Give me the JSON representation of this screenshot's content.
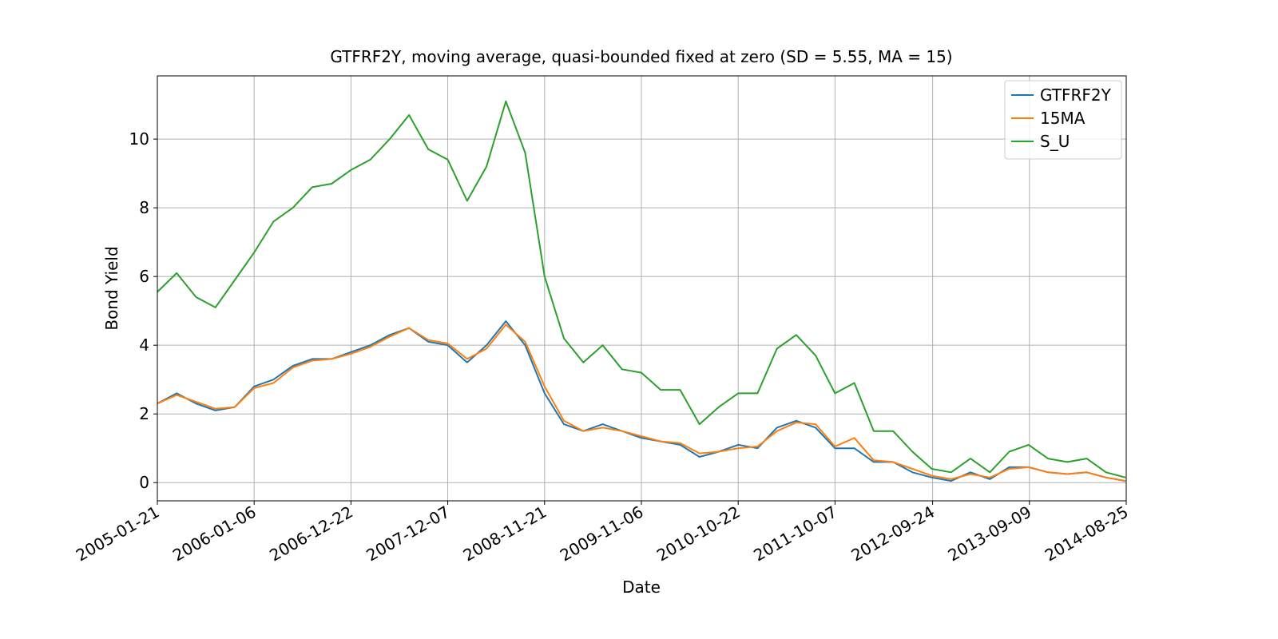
{
  "chart_data": {
    "type": "line",
    "title": "GTFRF2Y, moving average, quasi-bounded fixed at zero (SD = 5.55, MA = 15)",
    "xlabel": "Date",
    "ylabel": "Bond Yield",
    "x": [
      "2005-01-21",
      "2005-04-01",
      "2005-06-10",
      "2005-08-19",
      "2005-10-28",
      "2006-01-06",
      "2006-03-17",
      "2006-05-26",
      "2006-08-04",
      "2006-10-13",
      "2006-12-22",
      "2007-03-02",
      "2007-05-11",
      "2007-07-20",
      "2007-09-28",
      "2007-12-07",
      "2008-02-15",
      "2008-04-25",
      "2008-07-04",
      "2008-09-12",
      "2008-11-21",
      "2009-01-30",
      "2009-04-10",
      "2009-06-19",
      "2009-08-28",
      "2009-11-06",
      "2010-01-15",
      "2010-03-26",
      "2010-06-04",
      "2010-08-13",
      "2010-10-22",
      "2010-12-31",
      "2011-03-11",
      "2011-05-20",
      "2011-07-29",
      "2011-10-07",
      "2011-12-16",
      "2012-02-24",
      "2012-05-04",
      "2012-07-13",
      "2012-09-21",
      "2012-11-30",
      "2013-02-08",
      "2013-04-19",
      "2013-06-28",
      "2013-09-06",
      "2013-11-15",
      "2014-01-24",
      "2014-04-04",
      "2014-06-13",
      "2014-08-22"
    ],
    "series": [
      {
        "name": "GTFRF2Y",
        "color": "#1f77b4",
        "values": [
          2.3,
          2.6,
          2.3,
          2.1,
          2.2,
          2.8,
          3.0,
          3.4,
          3.6,
          3.6,
          3.8,
          4.0,
          4.3,
          4.5,
          4.1,
          4.0,
          3.5,
          4.0,
          4.7,
          4.0,
          2.6,
          1.7,
          1.5,
          1.7,
          1.5,
          1.3,
          1.2,
          1.1,
          0.75,
          0.9,
          1.1,
          1.0,
          1.6,
          1.8,
          1.6,
          1.0,
          1.0,
          0.6,
          0.6,
          0.3,
          0.15,
          0.05,
          0.3,
          0.1,
          0.45,
          0.45,
          0.3,
          0.25,
          0.3,
          0.15,
          0.05
        ]
      },
      {
        "name": "15MA",
        "color": "#ff7f0e",
        "values": [
          2.3,
          2.55,
          2.35,
          2.15,
          2.2,
          2.75,
          2.9,
          3.35,
          3.55,
          3.6,
          3.75,
          3.95,
          4.25,
          4.5,
          4.15,
          4.05,
          3.6,
          3.9,
          4.6,
          4.1,
          2.8,
          1.8,
          1.5,
          1.6,
          1.5,
          1.35,
          1.2,
          1.15,
          0.85,
          0.9,
          1.0,
          1.05,
          1.5,
          1.75,
          1.7,
          1.05,
          1.3,
          0.65,
          0.6,
          0.4,
          0.2,
          0.1,
          0.25,
          0.15,
          0.4,
          0.45,
          0.3,
          0.25,
          0.3,
          0.15,
          0.05
        ]
      },
      {
        "name": "S_U",
        "color": "#2ca02c",
        "values": [
          5.55,
          6.1,
          5.4,
          5.1,
          5.9,
          6.7,
          7.6,
          8.0,
          8.6,
          8.7,
          9.1,
          9.4,
          10.0,
          10.7,
          9.7,
          9.4,
          8.2,
          9.2,
          11.1,
          9.6,
          6.0,
          4.2,
          3.5,
          4.0,
          3.3,
          3.2,
          2.7,
          2.7,
          1.7,
          2.2,
          2.6,
          2.6,
          3.9,
          4.3,
          3.7,
          2.6,
          2.9,
          1.5,
          1.5,
          0.9,
          0.4,
          0.3,
          0.7,
          0.3,
          0.9,
          1.1,
          0.7,
          0.6,
          0.7,
          0.3,
          0.15
        ]
      }
    ],
    "xlim": [
      "2005-01-21",
      "2014-08-25"
    ],
    "xticks": [
      "2005-01-21",
      "2006-01-06",
      "2006-12-22",
      "2007-12-07",
      "2008-11-21",
      "2009-11-06",
      "2010-10-22",
      "2011-10-07",
      "2012-09-24",
      "2013-09-09",
      "2014-08-25"
    ],
    "ylim": [
      -0.53,
      11.84
    ],
    "yticks": [
      0,
      2,
      4,
      6,
      8,
      10
    ],
    "grid": true,
    "legend": "upper right"
  }
}
